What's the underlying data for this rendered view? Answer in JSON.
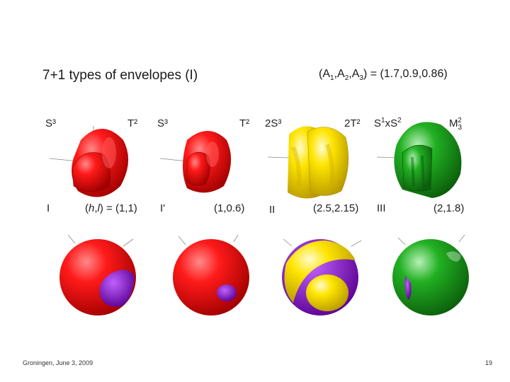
{
  "slide": {
    "title": "7+1 types of envelopes (I)",
    "params": {
      "prefix": "(A",
      "s1": "1",
      "m1": ",A",
      "s2": "2",
      "m2": ",A",
      "s3": "3",
      "suffix": ") = (1.7,0.9,0.86)"
    },
    "footer": "Groningen, June 3, 2009",
    "page_number": "19"
  },
  "columns": [
    {
      "top_left": "S³",
      "top_right": "T²",
      "case": "I",
      "hl_prefix": "(",
      "hl_h": "h",
      "hl_comma": ",",
      "hl_l": "l",
      "hl_suffix": ") = (1,1)",
      "color": "#e60000",
      "spot": "#8a00c8"
    },
    {
      "top_left": "S³",
      "top_right": "T²",
      "case": "I'",
      "value": "(1,0.6)",
      "color": "#e60000",
      "spot": "#8a00c8"
    },
    {
      "top_left": "2S³",
      "top_right": "2T²",
      "case": "II",
      "value": "(2.5,2.15)",
      "color": "#ffd800",
      "spot": "#8a00c8"
    },
    {
      "top_left_base": "S",
      "top_left_sup1": "1",
      "top_left_mid": "xS",
      "top_left_sup2": "2",
      "top_right_base": "M",
      "top_right_sub": "3",
      "top_right_sup": "2",
      "case": "III",
      "value": "(2,1.8)",
      "color": "#1e9e1e",
      "spot": "#8a00c8"
    }
  ]
}
